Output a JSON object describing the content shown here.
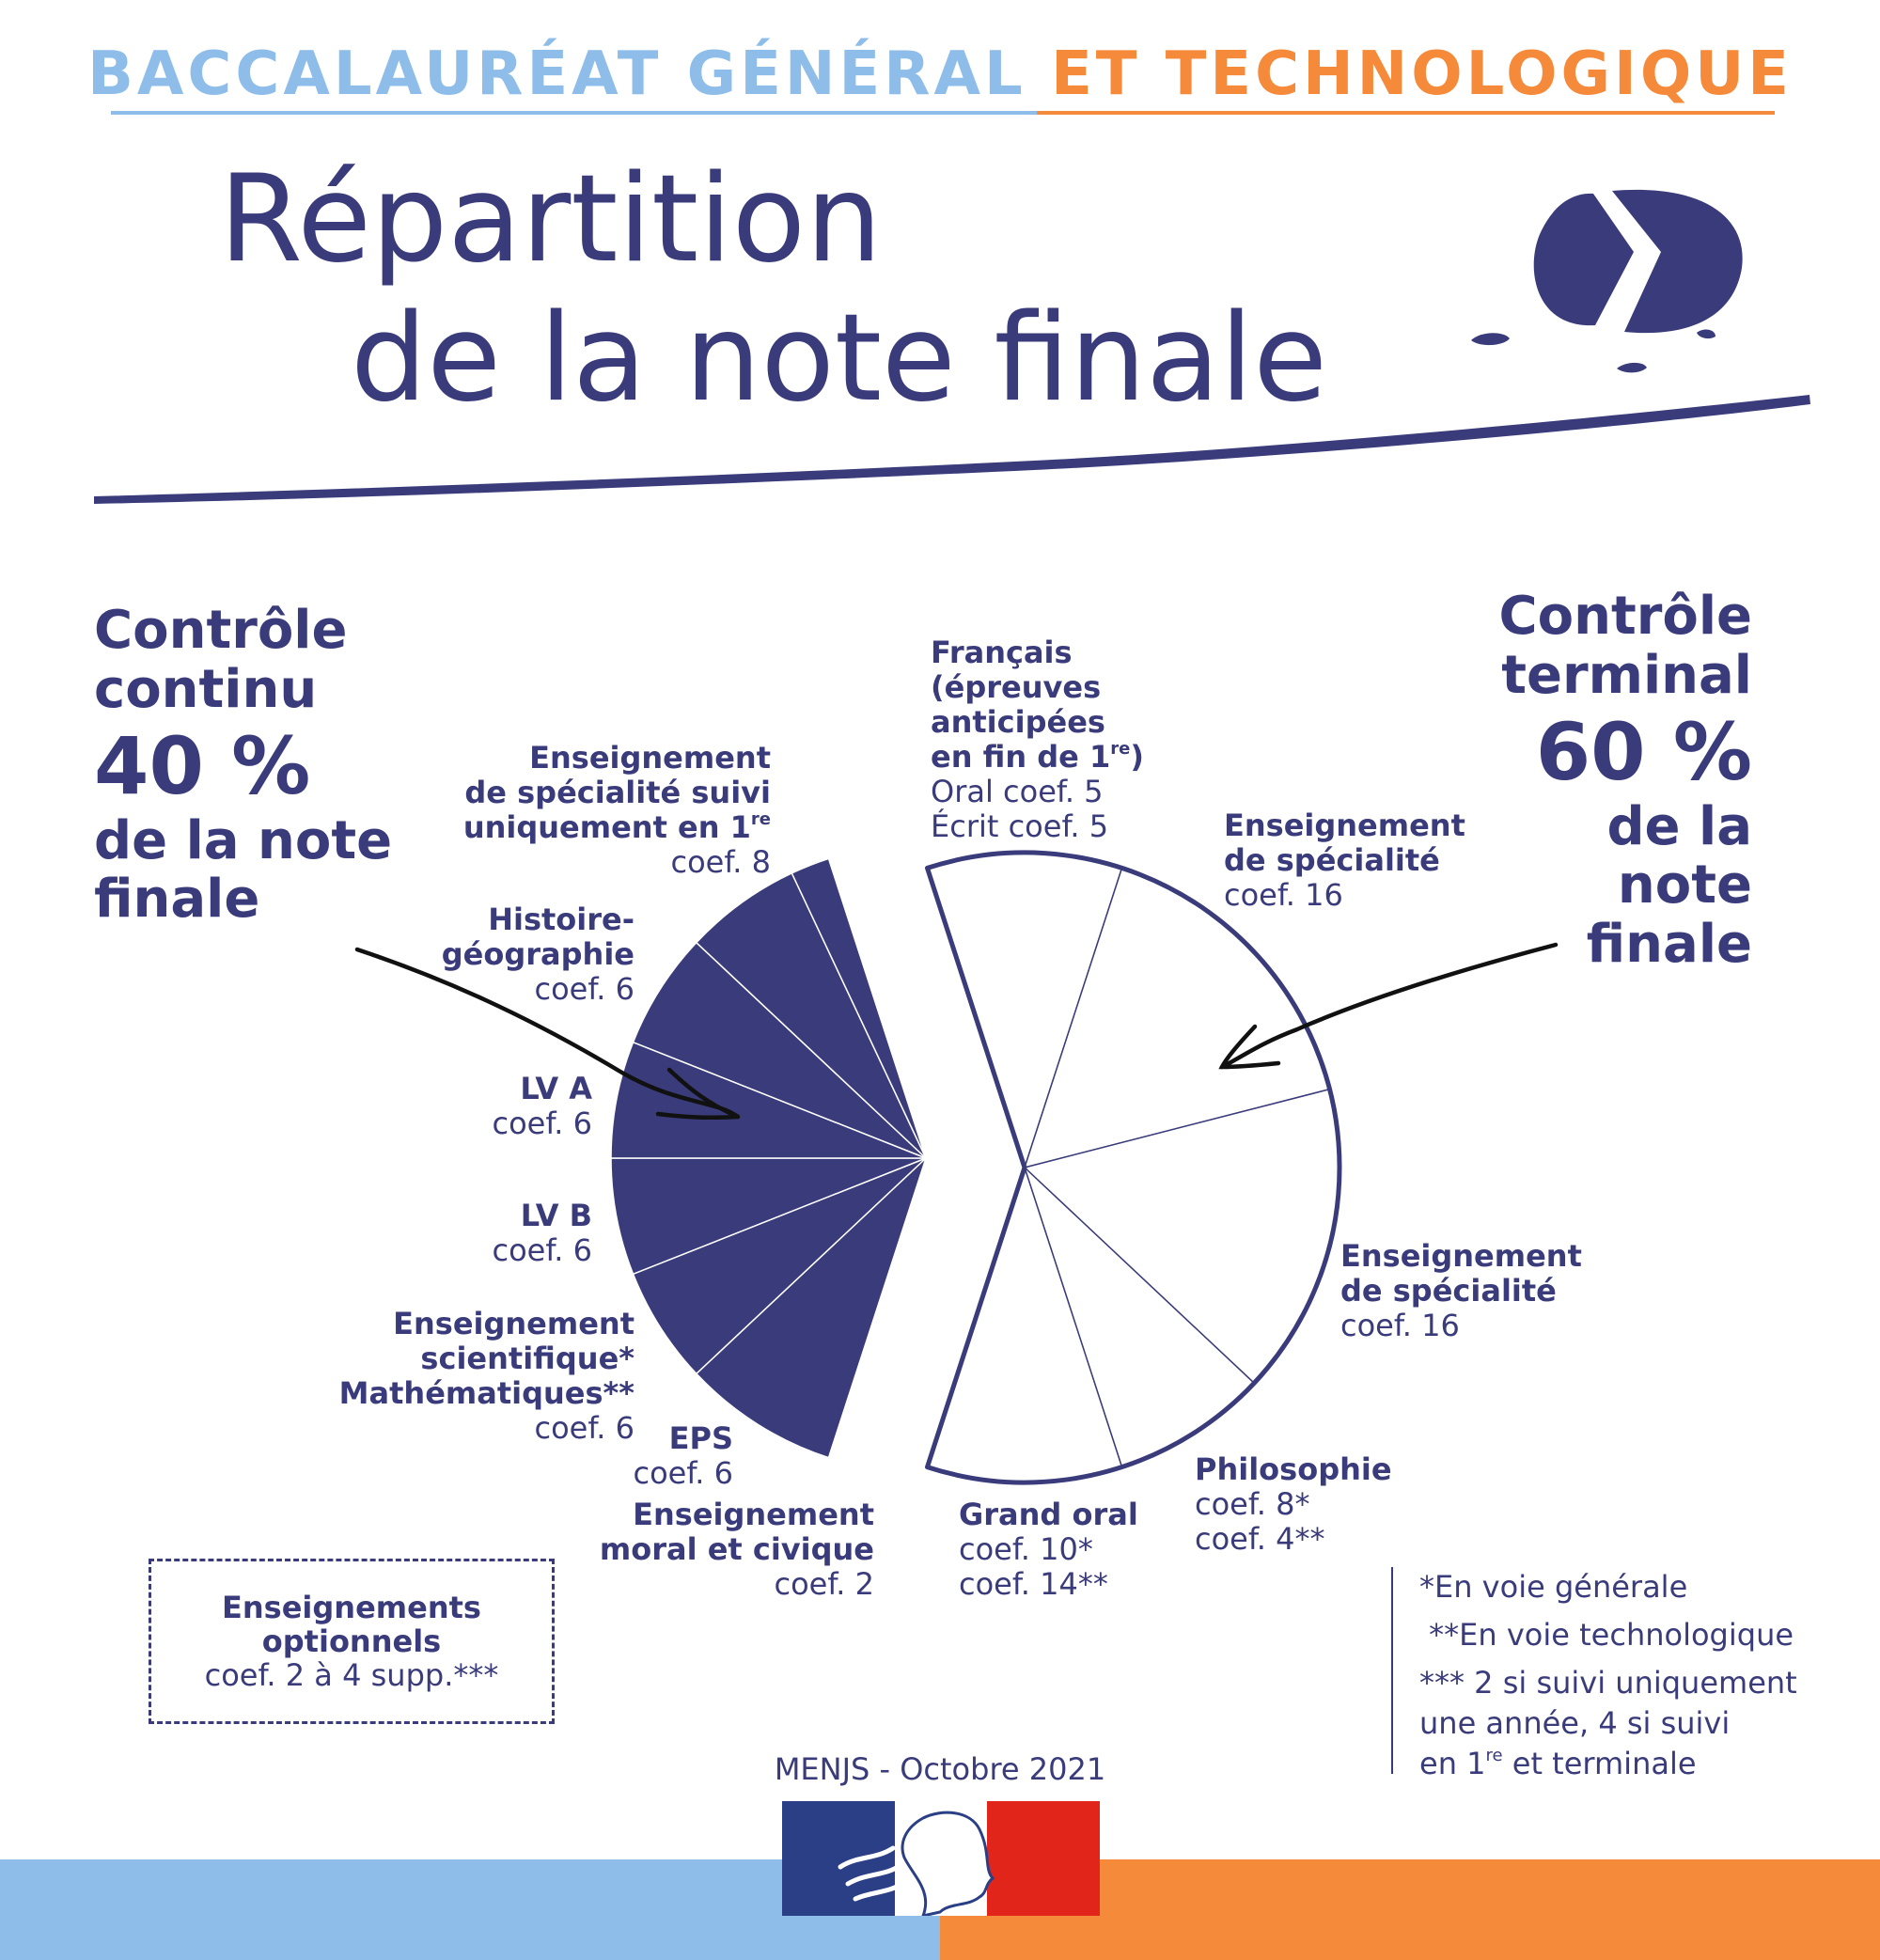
{
  "header": {
    "part1": "BACCALAURÉAT GÉNÉRAL",
    "part2": "ET TECHNOLOGIQUE"
  },
  "title": {
    "line1": "Répartition",
    "line2": "de la note finale"
  },
  "left_block": {
    "line1": "Contrôle",
    "line2": "continu",
    "percent": "40 %",
    "line3": "de la note",
    "line4": "finale"
  },
  "right_block": {
    "line1": "Contrôle",
    "line2": "terminal",
    "percent": "60 %",
    "line3": "de la",
    "line4": "note",
    "line5": "finale"
  },
  "chart_data": {
    "type": "pie",
    "title": "",
    "groups": [
      {
        "name": "Contrôle continu",
        "share": "40 %",
        "color": "#3a3b7b",
        "slices": [
          {
            "bold": [
              "Enseignement",
              "de spécialité suivi",
              "uniquement en 1re"
            ],
            "normal": [
              "coef. 8"
            ],
            "value": 8
          },
          {
            "bold": [
              "Histoire-",
              "géographie"
            ],
            "normal": [
              "coef. 6"
            ],
            "value": 6
          },
          {
            "bold": [
              "LV A"
            ],
            "normal": [
              "coef. 6"
            ],
            "value": 6
          },
          {
            "bold": [
              "LV B"
            ],
            "normal": [
              "coef. 6"
            ],
            "value": 6
          },
          {
            "bold": [
              "Enseignement",
              "scientifique*",
              "Mathématiques**"
            ],
            "normal": [
              "coef. 6"
            ],
            "value": 6
          },
          {
            "bold": [
              "EPS"
            ],
            "normal": [
              "coef. 6"
            ],
            "value": 6
          },
          {
            "bold": [
              "Enseignement",
              "moral et civique"
            ],
            "normal": [
              "coef. 2"
            ],
            "value": 2
          }
        ]
      },
      {
        "name": "Contrôle terminal",
        "share": "60 %",
        "color": "#ffffff",
        "slices": [
          {
            "bold": [
              "Français",
              "(épreuves",
              "anticipées",
              "en fin de 1re)"
            ],
            "normal": [
              "Oral coef. 5",
              "Écrit coef. 5"
            ],
            "value": 10
          },
          {
            "bold": [
              "Enseignement",
              "de spécialité"
            ],
            "normal": [
              "coef. 16"
            ],
            "value": 16
          },
          {
            "bold": [
              "Enseignement",
              "de spécialité"
            ],
            "normal": [
              "coef. 16"
            ],
            "value": 16
          },
          {
            "bold": [
              "Philosophie"
            ],
            "normal": [
              "coef. 8*",
              "coef. 4**"
            ],
            "value": 8
          },
          {
            "bold": [
              "Grand oral"
            ],
            "normal": [
              "coef. 10*",
              "coef. 14**"
            ],
            "value": 10
          }
        ]
      }
    ]
  },
  "optional": {
    "line1": "Enseignements",
    "line2": "optionnels",
    "line3": "coef. 2 à 4 supp.***"
  },
  "notes": {
    "n1": "*En voie générale",
    "n2": " **En voie technologique",
    "n3": "*** 2 si suivi uniquement",
    "n4": "une année, 4 si suivi",
    "n5": "en 1re et terminale"
  },
  "footer": {
    "credit": "MENJS - Octobre 2021"
  },
  "colors": {
    "navy": "#3a3b7b",
    "light_blue": "#8ebde9",
    "orange": "#f58a3a",
    "flag_blue": "#2b3f86",
    "flag_red": "#e1251b"
  }
}
